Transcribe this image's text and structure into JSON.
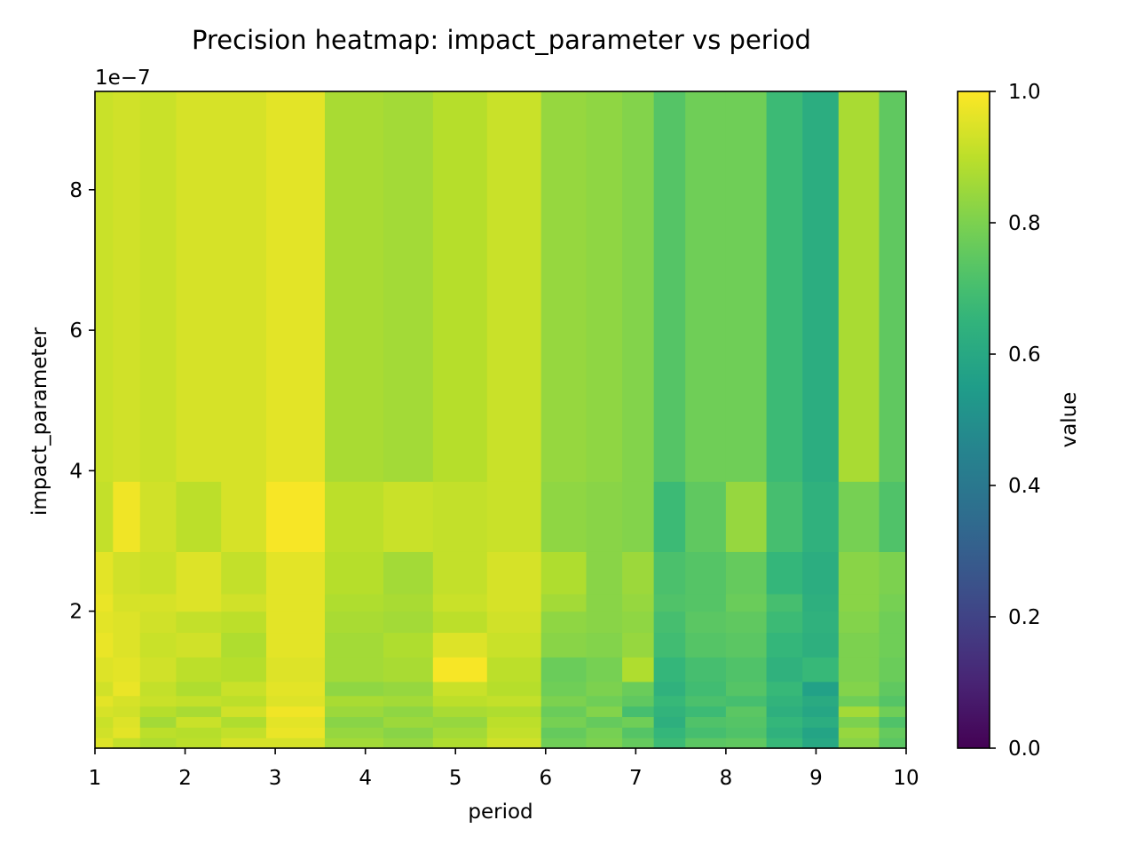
{
  "chart_data": {
    "type": "heatmap",
    "title": "Precision heatmap: impact_parameter vs period",
    "xlabel": "period",
    "ylabel": "impact_parameter",
    "y_offset_label": "1e−7",
    "xlim": [
      1,
      10
    ],
    "ylim": [
      0.05,
      9.4
    ],
    "x_ticks": [
      1,
      2,
      3,
      4,
      5,
      6,
      7,
      8,
      9,
      10
    ],
    "x_tick_labels": [
      "1",
      "2",
      "3",
      "4",
      "5",
      "6",
      "7",
      "8",
      "9",
      "10"
    ],
    "y_ticks": [
      2,
      4,
      6,
      8
    ],
    "y_tick_labels": [
      "2",
      "4",
      "6",
      "8"
    ],
    "colorbar": {
      "label": "value",
      "colormap": "viridis",
      "range": [
        0.0,
        1.0
      ],
      "ticks": [
        0.0,
        0.2,
        0.4,
        0.6,
        0.8,
        1.0
      ],
      "tick_labels": [
        "0.0",
        "0.2",
        "0.4",
        "0.6",
        "0.8",
        "1.0"
      ]
    },
    "x_edges": [
      1.0,
      1.2,
      1.5,
      1.9,
      2.4,
      2.9,
      3.55,
      4.2,
      4.75,
      5.35,
      5.95,
      6.45,
      6.85,
      7.2,
      7.55,
      8.0,
      8.45,
      8.85,
      9.25,
      9.7,
      10.0
    ],
    "y_edges": [
      0.05,
      0.2,
      0.35,
      0.5,
      0.65,
      0.8,
      1.0,
      1.35,
      1.7,
      2.0,
      2.25,
      2.85,
      3.85,
      9.4
    ],
    "column_base": [
      0.92,
      0.93,
      0.92,
      0.94,
      0.94,
      0.96,
      0.87,
      0.86,
      0.89,
      0.92,
      0.84,
      0.83,
      0.81,
      0.73,
      0.78,
      0.78,
      0.68,
      0.62,
      0.87,
      0.75
    ],
    "values": [
      [
        0.95,
        0.91,
        0.88,
        0.9,
        0.94,
        0.94,
        0.86,
        0.84,
        0.88,
        0.93,
        0.78,
        0.8,
        0.76,
        0.68,
        0.74,
        0.75,
        0.67,
        0.6,
        0.82,
        0.74
      ],
      [
        0.93,
        0.96,
        0.9,
        0.89,
        0.91,
        0.97,
        0.84,
        0.82,
        0.86,
        0.91,
        0.76,
        0.79,
        0.73,
        0.66,
        0.7,
        0.72,
        0.64,
        0.58,
        0.84,
        0.76
      ],
      [
        0.92,
        0.95,
        0.86,
        0.92,
        0.88,
        0.96,
        0.82,
        0.85,
        0.84,
        0.9,
        0.79,
        0.76,
        0.78,
        0.63,
        0.72,
        0.73,
        0.66,
        0.62,
        0.8,
        0.72
      ],
      [
        0.94,
        0.93,
        0.89,
        0.87,
        0.93,
        0.98,
        0.85,
        0.83,
        0.87,
        0.88,
        0.77,
        0.81,
        0.7,
        0.65,
        0.68,
        0.74,
        0.63,
        0.59,
        0.86,
        0.78
      ],
      [
        0.96,
        0.94,
        0.92,
        0.91,
        0.9,
        0.95,
        0.87,
        0.86,
        0.9,
        0.91,
        0.8,
        0.78,
        0.75,
        0.67,
        0.71,
        0.7,
        0.65,
        0.61,
        0.78,
        0.73
      ],
      [
        0.93,
        0.97,
        0.91,
        0.88,
        0.92,
        0.96,
        0.83,
        0.84,
        0.92,
        0.89,
        0.78,
        0.8,
        0.77,
        0.64,
        0.69,
        0.73,
        0.67,
        0.57,
        0.81,
        0.75
      ],
      [
        0.95,
        0.96,
        0.93,
        0.9,
        0.89,
        0.95,
        0.86,
        0.87,
        0.99,
        0.9,
        0.77,
        0.79,
        0.88,
        0.66,
        0.7,
        0.72,
        0.64,
        0.67,
        0.8,
        0.77
      ],
      [
        0.97,
        0.95,
        0.92,
        0.93,
        0.88,
        0.96,
        0.86,
        0.88,
        0.95,
        0.92,
        0.82,
        0.81,
        0.84,
        0.69,
        0.73,
        0.74,
        0.66,
        0.63,
        0.8,
        0.78
      ],
      [
        0.96,
        0.95,
        0.93,
        0.91,
        0.9,
        0.96,
        0.87,
        0.86,
        0.9,
        0.93,
        0.83,
        0.82,
        0.83,
        0.7,
        0.74,
        0.75,
        0.68,
        0.64,
        0.81,
        0.78
      ],
      [
        0.97,
        0.94,
        0.94,
        0.95,
        0.93,
        0.96,
        0.88,
        0.87,
        0.92,
        0.94,
        0.86,
        0.82,
        0.84,
        0.72,
        0.73,
        0.77,
        0.7,
        0.63,
        0.82,
        0.79
      ],
      [
        0.96,
        0.93,
        0.92,
        0.95,
        0.91,
        0.96,
        0.89,
        0.86,
        0.91,
        0.94,
        0.88,
        0.82,
        0.85,
        0.71,
        0.73,
        0.76,
        0.66,
        0.62,
        0.82,
        0.8
      ],
      [
        0.91,
        0.98,
        0.93,
        0.9,
        0.94,
        0.99,
        0.9,
        0.92,
        0.91,
        0.92,
        0.83,
        0.82,
        0.81,
        0.68,
        0.75,
        0.84,
        0.7,
        0.64,
        0.79,
        0.72
      ],
      [
        0.92,
        0.93,
        0.92,
        0.94,
        0.94,
        0.96,
        0.87,
        0.86,
        0.89,
        0.92,
        0.84,
        0.83,
        0.81,
        0.73,
        0.78,
        0.78,
        0.68,
        0.62,
        0.87,
        0.75
      ]
    ]
  }
}
